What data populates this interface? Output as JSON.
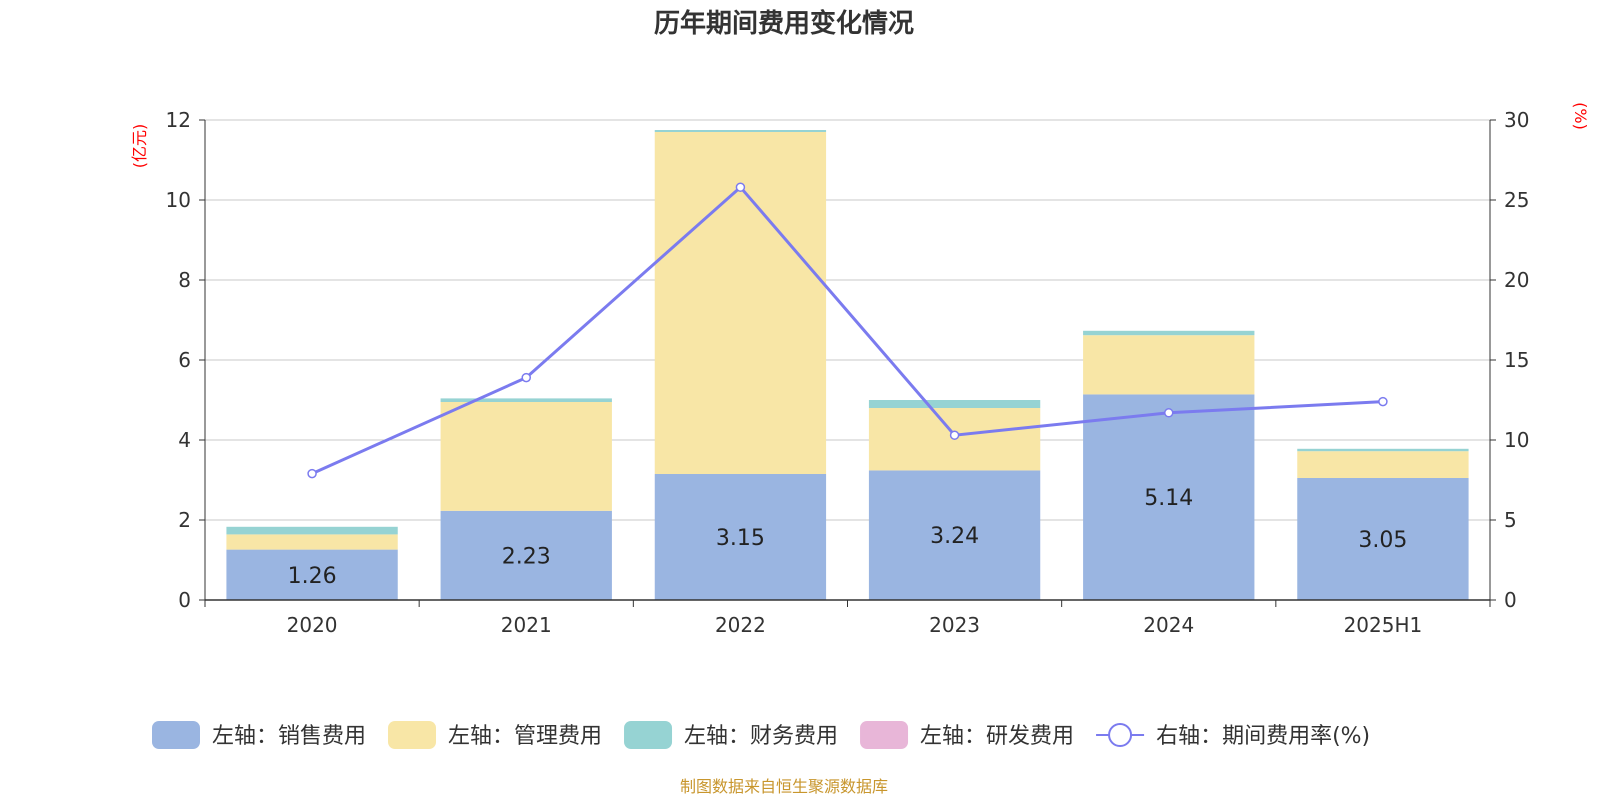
{
  "chart_data": {
    "type": "bar",
    "title": "历年期间费用变化情况",
    "categories": [
      "2020",
      "2021",
      "2022",
      "2023",
      "2024",
      "2025H1"
    ],
    "left_axis": {
      "unit": "(亿元)",
      "ylim": [
        0,
        12
      ],
      "ticks": [
        0,
        2,
        4,
        6,
        8,
        10,
        12
      ]
    },
    "right_axis": {
      "unit": "(%)",
      "ylim": [
        0,
        30
      ],
      "ticks": [
        0,
        5,
        10,
        15,
        20,
        25,
        30
      ]
    },
    "grid": true,
    "legend_position": "bottom",
    "series": [
      {
        "name": "左轴：销售费用",
        "kind": "bar",
        "axis": "left",
        "color": "#9ab5e1",
        "values": [
          1.26,
          2.23,
          3.15,
          3.24,
          5.14,
          3.05
        ],
        "show_labels": true
      },
      {
        "name": "左轴：管理费用",
        "kind": "bar",
        "axis": "left",
        "color": "#f8e6a6",
        "values": [
          0.38,
          2.72,
          8.55,
          1.56,
          1.48,
          0.67
        ],
        "show_labels": false
      },
      {
        "name": "左轴：财务费用",
        "kind": "bar",
        "axis": "left",
        "color": "#96d3d3",
        "values": [
          0.19,
          0.09,
          0.05,
          0.2,
          0.11,
          0.06
        ],
        "show_labels": false
      },
      {
        "name": "左轴：研发费用",
        "kind": "bar",
        "axis": "left",
        "color": "#e8b6d8",
        "values": [
          0,
          0,
          0,
          0,
          0,
          0
        ],
        "show_labels": false
      },
      {
        "name": "右轴：期间费用率(%)",
        "kind": "line",
        "axis": "right",
        "color": "#7b7bef",
        "values": [
          7.9,
          13.9,
          25.8,
          10.3,
          11.7,
          12.4
        ],
        "show_labels": false
      }
    ]
  },
  "source_text": "制图数据来自恒生聚源数据库"
}
